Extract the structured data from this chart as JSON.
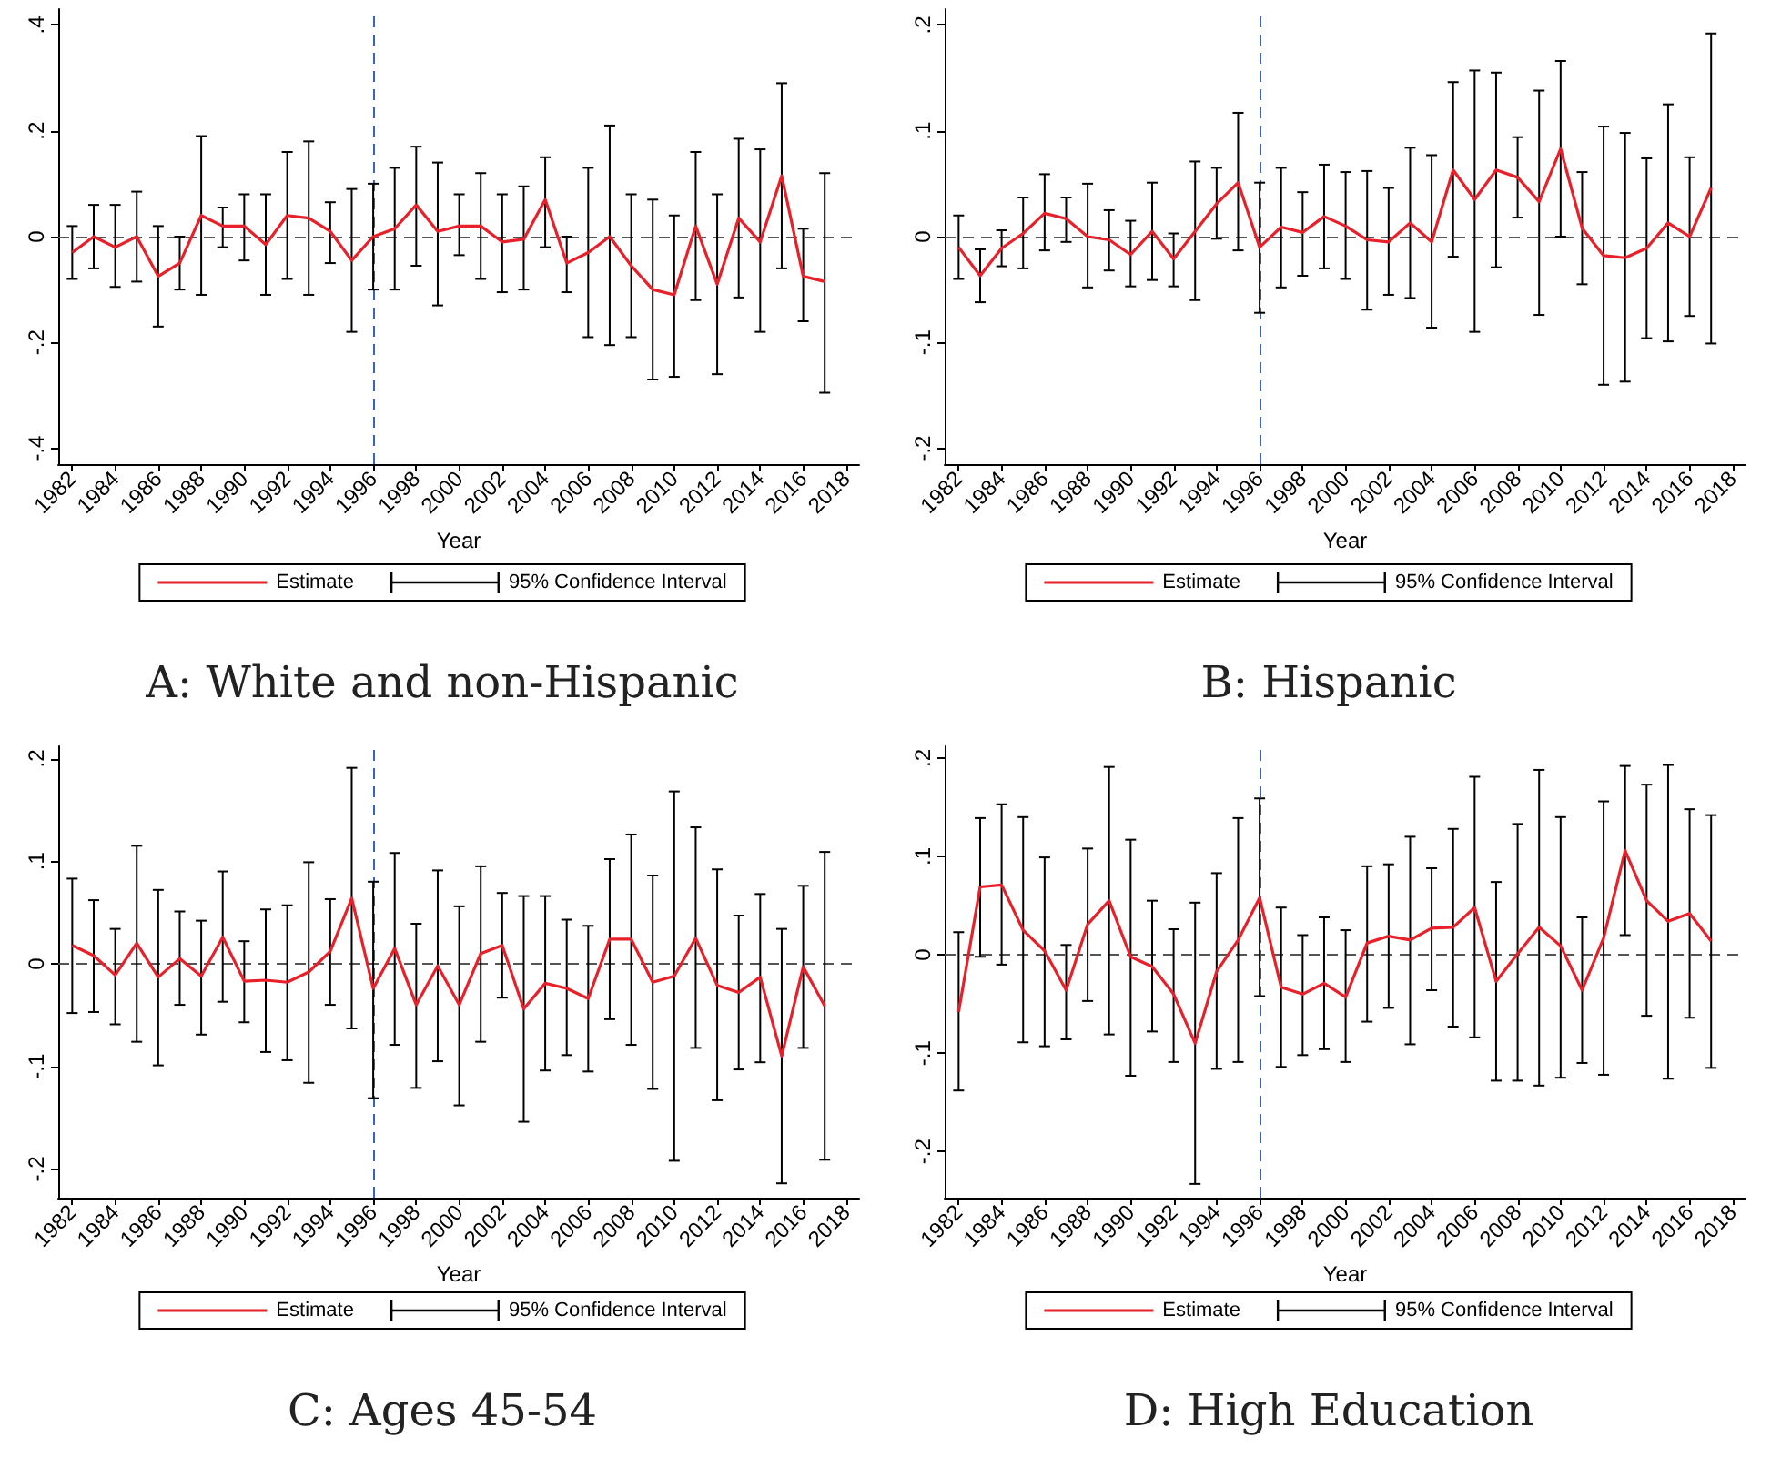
{
  "chart_data": [
    {
      "type": "line",
      "title": "A: White and non-Hispanic",
      "xlabel": "Year",
      "annotations": [
        "95% Confidence Interval"
      ],
      "legend": "bottom",
      "marker": "none",
      "grid": false,
      "x": [
        1982,
        1983,
        1984,
        1985,
        1986,
        1987,
        1988,
        1989,
        1990,
        1991,
        1992,
        1993,
        1994,
        1995,
        1996,
        1997,
        1998,
        1999,
        2000,
        2001,
        2002,
        2003,
        2004,
        2005,
        2006,
        2007,
        2008,
        2009,
        2010,
        2011,
        2012,
        2013,
        2014,
        2015,
        2016,
        2017
      ],
      "xlim": [
        1981.35,
        2018.6
      ],
      "xticks": [
        1982,
        1984,
        1986,
        1988,
        1990,
        1992,
        1994,
        1996,
        1998,
        2000,
        2002,
        2004,
        2006,
        2008,
        2010,
        2012,
        2014,
        2016,
        2018
      ],
      "ylim": [
        -0.43,
        0.43
      ],
      "yticks": [
        {
          "value": -0.4,
          "label": "-.4"
        },
        {
          "value": -0.2,
          "label": "-.2"
        },
        {
          "value": 0,
          "label": "0"
        },
        {
          "value": 0.2,
          "label": ".2"
        },
        {
          "value": 0.4,
          "label": ".4"
        }
      ],
      "ref_lines": [
        {
          "axis": "y",
          "value": 0,
          "color": "#555555",
          "line_style": "dashed"
        },
        {
          "axis": "x",
          "value": 1996,
          "color": "#3b5fc8",
          "line_style": "dashed"
        }
      ],
      "series": [
        {
          "name": "Estimate",
          "color": "#e8202a",
          "values": [
            -0.03,
            0.0,
            -0.02,
            0.0,
            -0.075,
            -0.05,
            0.04,
            0.02,
            0.02,
            -0.015,
            0.04,
            0.035,
            0.01,
            -0.045,
            0.0,
            0.015,
            0.06,
            0.01,
            0.02,
            0.02,
            -0.01,
            -0.005,
            0.07,
            -0.05,
            -0.03,
            0.0,
            -0.055,
            -0.1,
            -0.11,
            0.02,
            -0.09,
            0.035,
            -0.01,
            0.115,
            -0.075,
            -0.085
          ],
          "errors": [
            [
              -0.08,
              0.02
            ],
            [
              -0.06,
              0.06
            ],
            [
              -0.095,
              0.06
            ],
            [
              -0.085,
              0.085
            ],
            [
              -0.17,
              0.02
            ],
            [
              -0.1,
              0.0
            ],
            [
              -0.11,
              0.19
            ],
            [
              -0.02,
              0.055
            ],
            [
              -0.045,
              0.08
            ],
            [
              -0.11,
              0.08
            ],
            [
              -0.08,
              0.16
            ],
            [
              -0.11,
              0.18
            ],
            [
              -0.05,
              0.065
            ],
            [
              -0.18,
              0.09
            ],
            [
              -0.1,
              0.1
            ],
            [
              -0.1,
              0.13
            ],
            [
              -0.055,
              0.17
            ],
            [
              -0.13,
              0.14
            ],
            [
              -0.035,
              0.08
            ],
            [
              -0.08,
              0.12
            ],
            [
              -0.105,
              0.08
            ],
            [
              -0.1,
              0.095
            ],
            [
              -0.02,
              0.15
            ],
            [
              -0.105,
              0.0
            ],
            [
              -0.19,
              0.13
            ],
            [
              -0.205,
              0.21
            ],
            [
              -0.19,
              0.08
            ],
            [
              -0.27,
              0.07
            ],
            [
              -0.265,
              0.04
            ],
            [
              -0.12,
              0.16
            ],
            [
              -0.26,
              0.08
            ],
            [
              -0.115,
              0.185
            ],
            [
              -0.18,
              0.165
            ],
            [
              -0.06,
              0.29
            ],
            [
              -0.16,
              0.015
            ],
            [
              -0.295,
              0.12
            ]
          ]
        }
      ]
    },
    {
      "type": "line",
      "title": "B: Hispanic",
      "xlabel": "Year",
      "annotations": [
        "95% Confidence Interval"
      ],
      "legend": "bottom",
      "marker": "none",
      "grid": false,
      "x": [
        1982,
        1983,
        1984,
        1985,
        1986,
        1987,
        1988,
        1989,
        1990,
        1991,
        1992,
        1993,
        1994,
        1995,
        1996,
        1997,
        1998,
        1999,
        2000,
        2001,
        2002,
        2003,
        2004,
        2005,
        2006,
        2007,
        2008,
        2009,
        2010,
        2011,
        2012,
        2013,
        2014,
        2015,
        2016,
        2017
      ],
      "xlim": [
        1981.35,
        2018.6
      ],
      "xticks": [
        1982,
        1984,
        1986,
        1988,
        1990,
        1992,
        1994,
        1996,
        1998,
        2000,
        2002,
        2004,
        2006,
        2008,
        2010,
        2012,
        2014,
        2016,
        2018
      ],
      "ylim": [
        -0.215,
        0.215
      ],
      "yticks": [
        {
          "value": -0.2,
          "label": "-.2"
        },
        {
          "value": -0.1,
          "label": "-.1"
        },
        {
          "value": 0,
          "label": "0"
        },
        {
          "value": 0.1,
          "label": ".1"
        },
        {
          "value": 0.2,
          "label": ".2"
        }
      ],
      "ref_lines": [
        {
          "axis": "y",
          "value": 0,
          "color": "#555555",
          "line_style": "dashed"
        },
        {
          "axis": "x",
          "value": 1996,
          "color": "#3b5fc8",
          "line_style": "dashed"
        }
      ],
      "series": [
        {
          "name": "Estimate",
          "color": "#e8202a",
          "values": [
            -0.01,
            -0.037,
            -0.011,
            0.003,
            0.022,
            0.017,
            0.0,
            -0.003,
            -0.017,
            0.005,
            -0.021,
            0.005,
            0.031,
            0.051,
            -0.01,
            0.009,
            0.004,
            0.019,
            0.01,
            -0.003,
            -0.005,
            0.013,
            -0.005,
            0.063,
            0.035,
            0.063,
            0.056,
            0.033,
            0.083,
            0.008,
            -0.018,
            -0.02,
            -0.011,
            0.013,
            0.0,
            0.046
          ],
          "errors": [
            [
              -0.04,
              0.02
            ],
            [
              -0.062,
              -0.012
            ],
            [
              -0.028,
              0.006
            ],
            [
              -0.03,
              0.037
            ],
            [
              -0.013,
              0.059
            ],
            [
              -0.005,
              0.037
            ],
            [
              -0.048,
              0.05
            ],
            [
              -0.032,
              0.025
            ],
            [
              -0.047,
              0.015
            ],
            [
              -0.041,
              0.051
            ],
            [
              -0.047,
              0.003
            ],
            [
              -0.06,
              0.071
            ],
            [
              -0.002,
              0.065
            ],
            [
              -0.013,
              0.117
            ],
            [
              -0.072,
              0.051
            ],
            [
              -0.048,
              0.065
            ],
            [
              -0.037,
              0.042
            ],
            [
              -0.03,
              0.068
            ],
            [
              -0.04,
              0.061
            ],
            [
              -0.069,
              0.062
            ],
            [
              -0.055,
              0.046
            ],
            [
              -0.058,
              0.084
            ],
            [
              -0.086,
              0.077
            ],
            [
              -0.019,
              0.146
            ],
            [
              -0.09,
              0.157
            ],
            [
              -0.029,
              0.155
            ],
            [
              0.018,
              0.094
            ],
            [
              -0.074,
              0.138
            ],
            [
              0.0,
              0.166
            ],
            [
              -0.045,
              0.061
            ],
            [
              -0.14,
              0.104
            ],
            [
              -0.137,
              0.098
            ],
            [
              -0.096,
              0.074
            ],
            [
              -0.099,
              0.125
            ],
            [
              -0.075,
              0.075
            ],
            [
              -0.101,
              0.192
            ]
          ]
        }
      ]
    },
    {
      "type": "line",
      "title": "C: Ages 45-54",
      "xlabel": "Year",
      "annotations": [
        "95% Confidence Interval"
      ],
      "legend": "bottom",
      "marker": "none",
      "grid": false,
      "x": [
        1982,
        1983,
        1984,
        1985,
        1986,
        1987,
        1988,
        1989,
        1990,
        1991,
        1992,
        1993,
        1994,
        1995,
        1996,
        1997,
        1998,
        1999,
        2000,
        2001,
        2002,
        2003,
        2004,
        2005,
        2006,
        2007,
        2008,
        2009,
        2010,
        2011,
        2012,
        2013,
        2014,
        2015,
        2016,
        2017
      ],
      "xlim": [
        1981.35,
        2018.6
      ],
      "xticks": [
        1982,
        1984,
        1986,
        1988,
        1990,
        1992,
        1994,
        1996,
        1998,
        2000,
        2002,
        2004,
        2006,
        2008,
        2010,
        2012,
        2014,
        2016,
        2018
      ],
      "ylim": [
        -0.228,
        0.212
      ],
      "yticks": [
        {
          "value": -0.2,
          "label": "-.2"
        },
        {
          "value": -0.1,
          "label": "-.1"
        },
        {
          "value": 0,
          "label": "0"
        },
        {
          "value": 0.1,
          "label": ".1"
        },
        {
          "value": 0.2,
          "label": ".2"
        }
      ],
      "ref_lines": [
        {
          "axis": "y",
          "value": 0,
          "color": "#555555",
          "line_style": "dashed"
        },
        {
          "axis": "x",
          "value": 1996,
          "color": "#3b5fc8",
          "line_style": "dashed"
        }
      ],
      "series": [
        {
          "name": "Estimate",
          "color": "#e8202a",
          "values": [
            0.018,
            0.008,
            -0.011,
            0.02,
            -0.013,
            0.005,
            -0.012,
            0.026,
            -0.017,
            -0.016,
            -0.018,
            -0.008,
            0.012,
            0.064,
            -0.024,
            0.015,
            -0.04,
            -0.002,
            -0.04,
            0.01,
            0.018,
            -0.044,
            -0.019,
            -0.024,
            -0.034,
            0.024,
            0.024,
            -0.018,
            -0.012,
            0.025,
            -0.021,
            -0.028,
            -0.013,
            -0.09,
            -0.003,
            -0.041
          ],
          "errors": [
            [
              -0.048,
              0.083
            ],
            [
              -0.047,
              0.062
            ],
            [
              -0.059,
              0.034
            ],
            [
              -0.076,
              0.115
            ],
            [
              -0.099,
              0.072
            ],
            [
              -0.04,
              0.051
            ],
            [
              -0.069,
              0.042
            ],
            [
              -0.037,
              0.09
            ],
            [
              -0.057,
              0.022
            ],
            [
              -0.086,
              0.053
            ],
            [
              -0.094,
              0.057
            ],
            [
              -0.116,
              0.099
            ],
            [
              -0.04,
              0.063
            ],
            [
              -0.063,
              0.191
            ],
            [
              -0.131,
              0.08
            ],
            [
              -0.079,
              0.108
            ],
            [
              -0.121,
              0.039
            ],
            [
              -0.095,
              0.091
            ],
            [
              -0.138,
              0.056
            ],
            [
              -0.076,
              0.095
            ],
            [
              -0.033,
              0.069
            ],
            [
              -0.154,
              0.066
            ],
            [
              -0.104,
              0.066
            ],
            [
              -0.089,
              0.043
            ],
            [
              -0.105,
              0.037
            ],
            [
              -0.054,
              0.102
            ],
            [
              -0.079,
              0.126
            ],
            [
              -0.122,
              0.086
            ],
            [
              -0.192,
              0.168
            ],
            [
              -0.082,
              0.133
            ],
            [
              -0.133,
              0.092
            ],
            [
              -0.103,
              0.047
            ],
            [
              -0.096,
              0.068
            ],
            [
              -0.214,
              0.034
            ],
            [
              -0.082,
              0.076
            ],
            [
              -0.191,
              0.109
            ]
          ]
        }
      ]
    },
    {
      "type": "line",
      "title": "D: High Education",
      "xlabel": "Year",
      "annotations": [
        "95% Confidence Interval"
      ],
      "legend": "bottom",
      "marker": "none",
      "grid": false,
      "x": [
        1982,
        1983,
        1984,
        1985,
        1986,
        1987,
        1988,
        1989,
        1990,
        1991,
        1992,
        1993,
        1994,
        1995,
        1996,
        1997,
        1998,
        1999,
        2000,
        2001,
        2002,
        2003,
        2004,
        2005,
        2006,
        2007,
        2008,
        2009,
        2010,
        2011,
        2012,
        2013,
        2014,
        2015,
        2016,
        2017
      ],
      "xlim": [
        1981.35,
        2018.6
      ],
      "xticks": [
        1982,
        1984,
        1986,
        1988,
        1990,
        1992,
        1994,
        1996,
        1998,
        2000,
        2002,
        2004,
        2006,
        2008,
        2010,
        2012,
        2014,
        2016,
        2018
      ],
      "ylim": [
        -0.247,
        0.212
      ],
      "yticks": [
        {
          "value": -0.2,
          "label": "-.2"
        },
        {
          "value": -0.1,
          "label": "-.1"
        },
        {
          "value": 0,
          "label": "0"
        },
        {
          "value": 0.1,
          "label": ".1"
        },
        {
          "value": 0.2,
          "label": ".2"
        }
      ],
      "ref_lines": [
        {
          "axis": "y",
          "value": 0,
          "color": "#555555",
          "line_style": "dashed"
        },
        {
          "axis": "x",
          "value": 1996,
          "color": "#3b5fc8",
          "line_style": "dashed"
        }
      ],
      "series": [
        {
          "name": "Estimate",
          "color": "#e8202a",
          "values": [
            -0.058,
            0.069,
            0.071,
            0.025,
            0.004,
            -0.036,
            0.031,
            0.055,
            -0.002,
            -0.012,
            -0.04,
            -0.09,
            -0.017,
            0.015,
            0.058,
            -0.033,
            -0.04,
            -0.029,
            -0.043,
            0.012,
            0.019,
            0.015,
            0.027,
            0.028,
            0.048,
            -0.027,
            0.001,
            0.028,
            0.009,
            -0.036,
            0.017,
            0.106,
            0.055,
            0.034,
            0.042,
            0.014
          ],
          "errors": [
            [
              -0.138,
              0.023
            ],
            [
              -0.002,
              0.139
            ],
            [
              -0.01,
              0.153
            ],
            [
              -0.089,
              0.14
            ],
            [
              -0.093,
              0.099
            ],
            [
              -0.086,
              0.01
            ],
            [
              -0.047,
              0.108
            ],
            [
              -0.081,
              0.191
            ],
            [
              -0.123,
              0.117
            ],
            [
              -0.078,
              0.055
            ],
            [
              -0.109,
              0.026
            ],
            [
              -0.233,
              0.053
            ],
            [
              -0.116,
              0.083
            ],
            [
              -0.109,
              0.139
            ],
            [
              -0.042,
              0.159
            ],
            [
              -0.114,
              0.048
            ],
            [
              -0.102,
              0.02
            ],
            [
              -0.096,
              0.038
            ],
            [
              -0.109,
              0.025
            ],
            [
              -0.068,
              0.09
            ],
            [
              -0.054,
              0.092
            ],
            [
              -0.091,
              0.12
            ],
            [
              -0.036,
              0.088
            ],
            [
              -0.073,
              0.128
            ],
            [
              -0.084,
              0.181
            ],
            [
              -0.128,
              0.074
            ],
            [
              -0.128,
              0.133
            ],
            [
              -0.133,
              0.188
            ],
            [
              -0.125,
              0.14
            ],
            [
              -0.11,
              0.038
            ],
            [
              -0.122,
              0.156
            ],
            [
              0.02,
              0.192
            ],
            [
              -0.062,
              0.173
            ],
            [
              -0.126,
              0.193
            ],
            [
              -0.064,
              0.148
            ],
            [
              -0.115,
              0.142
            ]
          ]
        }
      ]
    }
  ]
}
